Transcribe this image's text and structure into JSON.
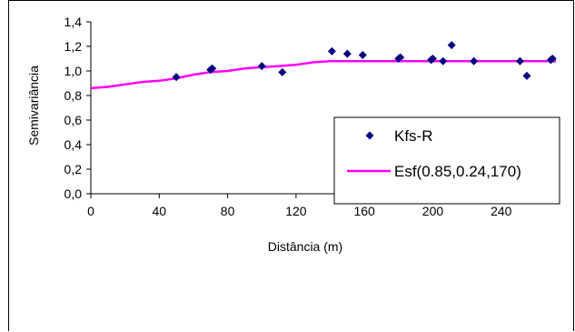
{
  "chart_data": {
    "type": "scatter",
    "xlabel": "Distância (m)",
    "ylabel": "Semivariância",
    "xlim": [
      0,
      272
    ],
    "ylim": [
      0.0,
      1.4
    ],
    "x_ticks": [
      0,
      40,
      80,
      120,
      160,
      200,
      240
    ],
    "y_ticks": [
      0.0,
      0.2,
      0.4,
      0.6,
      0.8,
      1.0,
      1.2,
      1.4
    ],
    "x_tick_labels": [
      "0",
      "40",
      "80",
      "120",
      "160",
      "200",
      "240"
    ],
    "y_tick_labels": [
      "0,0",
      "0,2",
      "0,4",
      "0,6",
      "0,8",
      "1,0",
      "1,2",
      "1,4"
    ],
    "grid": false,
    "legend_position": "right",
    "series": [
      {
        "name": "Kfs-R",
        "kind": "scatter",
        "color": "#000080",
        "marker": "diamond",
        "x": [
          50,
          70,
          71,
          100,
          112,
          141,
          150,
          159,
          180,
          181,
          199,
          200,
          206,
          211,
          224,
          251,
          255,
          269,
          270
        ],
        "y": [
          0.95,
          1.01,
          1.02,
          1.04,
          0.99,
          1.16,
          1.14,
          1.13,
          1.1,
          1.11,
          1.09,
          1.1,
          1.08,
          1.21,
          1.08,
          1.08,
          0.96,
          1.09,
          1.1
        ]
      },
      {
        "name": "Esf(0.85,0.24,170)",
        "kind": "line",
        "color": "#ff00ff",
        "model": {
          "nugget": 0.85,
          "sill": 0.24,
          "range": 170
        },
        "x": [
          0,
          10,
          20,
          30,
          40,
          50,
          60,
          70,
          80,
          90,
          100,
          110,
          120,
          130,
          140,
          150,
          160,
          170,
          180,
          200,
          220,
          240,
          260,
          272
        ],
        "y": [
          0.86,
          0.87,
          0.89,
          0.91,
          0.92,
          0.94,
          0.97,
          0.99,
          1.0,
          1.02,
          1.03,
          1.04,
          1.05,
          1.07,
          1.08,
          1.08,
          1.08,
          1.08,
          1.08,
          1.08,
          1.08,
          1.08,
          1.08,
          1.08
        ]
      }
    ]
  }
}
